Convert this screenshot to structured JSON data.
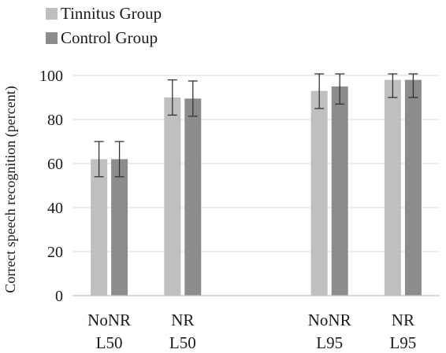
{
  "chart_data": {
    "type": "bar",
    "ylabel": "Correct speech recognition (percent)",
    "ylim": [
      0,
      100
    ],
    "yticks": [
      0,
      20,
      40,
      60,
      80,
      100
    ],
    "grid": true,
    "legend_position": "top-left",
    "category_gap_after": 1,
    "categories": [
      {
        "line1": "NoNR",
        "line2": "L50"
      },
      {
        "line1": "NR",
        "line2": "L50"
      },
      {
        "line1": "NoNR",
        "line2": "L95"
      },
      {
        "line1": "NR",
        "line2": "L95"
      }
    ],
    "series": [
      {
        "name": "Tinnitus Group",
        "color": "#bfbfbf",
        "values": [
          62,
          90,
          93,
          98
        ],
        "error": [
          8,
          8,
          8,
          8
        ]
      },
      {
        "name": "Control Group",
        "color": "#8c8c8c",
        "values": [
          62,
          89.5,
          95,
          98
        ],
        "error": [
          8,
          8,
          8,
          8
        ]
      }
    ]
  }
}
